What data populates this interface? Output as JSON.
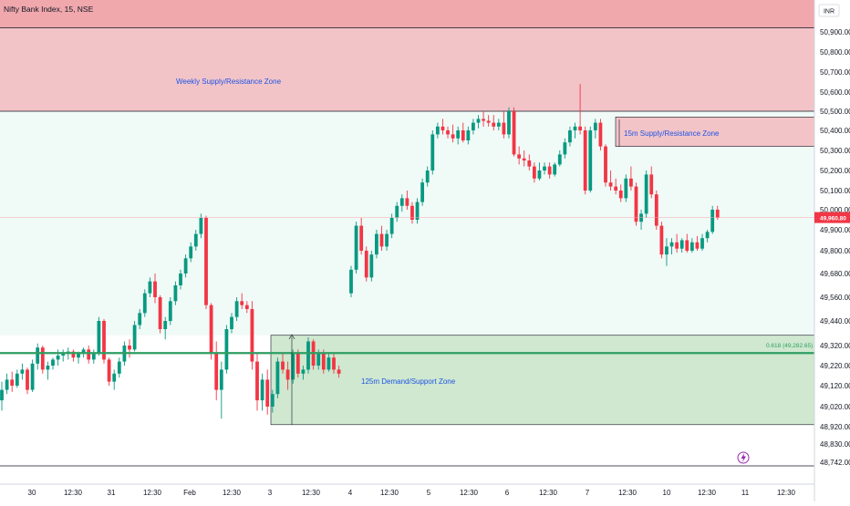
{
  "chart_data": {
    "type": "candlestick",
    "title": "Nifty Bank Index, 15, NSE",
    "currency": "INR",
    "y_axis": {
      "ticks": [
        "50,900.00",
        "50,800.00",
        "50,700.00",
        "50,600.00",
        "50,500.00",
        "50,400.00",
        "50,300.00",
        "50,200.00",
        "50,100.00",
        "50,000.00",
        "49,900.00",
        "49,800.00",
        "49,680.00",
        "49,560.00",
        "49,440.00",
        "49,320.00",
        "49,220.00",
        "49,120.00",
        "49,020.00",
        "48,920.00",
        "48,830.00",
        "48,742.00"
      ],
      "last_price": "49,960.80",
      "ylim": [
        48720,
        51000
      ]
    },
    "x_axis": {
      "labels": [
        "30",
        "12:30",
        "31",
        "12:30",
        "Feb",
        "12:30",
        "3",
        "12:30",
        "4",
        "12:30",
        "5",
        "12:30",
        "6",
        "12:30",
        "7",
        "12:30",
        "10",
        "12:30",
        "11",
        "12:30"
      ]
    },
    "zones": [
      {
        "name": "weekly-supply",
        "label": "Weekly Supply/Resistance Zone",
        "y_top": 51000,
        "y_bottom": 50500,
        "band_top": 50920,
        "color": "#f2c4c8",
        "dark_color": "#f0a8ad"
      },
      {
        "name": "15m-supply",
        "label": "15m Supply/Resistance Zone",
        "y_top": 50470,
        "y_bottom": 50320,
        "color": "#f2c4c8"
      },
      {
        "name": "125m-demand",
        "label": "125m Demand/Support Zone",
        "y_top": 49370,
        "y_bottom": 48930,
        "color": "#cfe8cf"
      }
    ],
    "fib_line": {
      "label": "0.618 (49,282.65)",
      "value": 49282.65,
      "color": "#2e9e62"
    },
    "colors": {
      "up": "#089981",
      "down": "#f23645",
      "demand_text": "#1e53e5",
      "supply_text": "#1e53e5"
    },
    "candles": [
      [
        49050,
        49140,
        49000,
        49100
      ],
      [
        49100,
        49180,
        49080,
        49150
      ],
      [
        49150,
        49190,
        49090,
        49120
      ],
      [
        49120,
        49200,
        49110,
        49180
      ],
      [
        49180,
        49230,
        49150,
        49200
      ],
      [
        49200,
        49210,
        49080,
        49100
      ],
      [
        49100,
        49250,
        49090,
        49230
      ],
      [
        49230,
        49330,
        49200,
        49310
      ],
      [
        49310,
        49320,
        49180,
        49200
      ],
      [
        49200,
        49240,
        49150,
        49220
      ],
      [
        49220,
        49260,
        49200,
        49250
      ],
      [
        49250,
        49300,
        49220,
        49270
      ],
      [
        49270,
        49300,
        49240,
        49280
      ],
      [
        49280,
        49310,
        49250,
        49290
      ],
      [
        49290,
        49300,
        49240,
        49260
      ],
      [
        49260,
        49290,
        49230,
        49280
      ],
      [
        49280,
        49310,
        49260,
        49300
      ],
      [
        49300,
        49320,
        49230,
        49250
      ],
      [
        49250,
        49300,
        49230,
        49280
      ],
      [
        49280,
        49460,
        49270,
        49440
      ],
      [
        49440,
        49450,
        49230,
        49250
      ],
      [
        49250,
        49260,
        49120,
        49140
      ],
      [
        49140,
        49200,
        49100,
        49180
      ],
      [
        49180,
        49260,
        49160,
        49240
      ],
      [
        49240,
        49340,
        49220,
        49320
      ],
      [
        49320,
        49350,
        49260,
        49300
      ],
      [
        49300,
        49440,
        49290,
        49420
      ],
      [
        49420,
        49500,
        49400,
        49480
      ],
      [
        49480,
        49600,
        49460,
        49580
      ],
      [
        49580,
        49660,
        49560,
        49640
      ],
      [
        49640,
        49680,
        49530,
        49560
      ],
      [
        49560,
        49570,
        49380,
        49400
      ],
      [
        49400,
        49460,
        49350,
        49440
      ],
      [
        49440,
        49560,
        49420,
        49540
      ],
      [
        49540,
        49640,
        49520,
        49620
      ],
      [
        49620,
        49700,
        49600,
        49680
      ],
      [
        49680,
        49780,
        49660,
        49760
      ],
      [
        49760,
        49840,
        49740,
        49820
      ],
      [
        49820,
        49900,
        49800,
        49880
      ],
      [
        49880,
        49980,
        49860,
        49960
      ],
      [
        49960,
        49970,
        49500,
        49520
      ],
      [
        49520,
        49530,
        49250,
        49280
      ],
      [
        49280,
        49340,
        49050,
        49100
      ],
      [
        49100,
        49240,
        48960,
        49200
      ],
      [
        49200,
        49420,
        49180,
        49400
      ],
      [
        49400,
        49480,
        49380,
        49460
      ],
      [
        49460,
        49560,
        49440,
        49540
      ],
      [
        49540,
        49580,
        49500,
        49520
      ],
      [
        49520,
        49540,
        49480,
        49500
      ],
      [
        49500,
        49540,
        49200,
        49240
      ],
      [
        49240,
        49280,
        49000,
        49050
      ],
      [
        49050,
        49180,
        49000,
        49150
      ],
      [
        49150,
        49200,
        48980,
        49020
      ],
      [
        49020,
        49100,
        48990,
        49080
      ],
      [
        49080,
        49260,
        49060,
        49240
      ],
      [
        49240,
        49280,
        49180,
        49200
      ],
      [
        49200,
        49240,
        49100,
        49150
      ],
      [
        49150,
        49300,
        49130,
        49280
      ],
      [
        49280,
        49300,
        49160,
        49180
      ],
      [
        49180,
        49220,
        49150,
        49200
      ],
      [
        49200,
        49360,
        49180,
        49340
      ],
      [
        49340,
        49350,
        49200,
        49220
      ],
      [
        49220,
        49300,
        49200,
        49280
      ],
      [
        49280,
        49300,
        49180,
        49200
      ],
      [
        49200,
        49280,
        49190,
        49260
      ],
      [
        49260,
        49280,
        49180,
        49200
      ],
      [
        49200,
        49220,
        49160,
        49180
      ],
      [
        49580,
        49720,
        49560,
        49700
      ],
      [
        49700,
        49940,
        49680,
        49920
      ],
      [
        49920,
        49960,
        49780,
        49800
      ],
      [
        49800,
        49820,
        49640,
        49660
      ],
      [
        49660,
        49800,
        49640,
        49780
      ],
      [
        49780,
        49900,
        49760,
        49880
      ],
      [
        49880,
        49920,
        49800,
        49820
      ],
      [
        49820,
        49900,
        49800,
        49880
      ],
      [
        49880,
        49980,
        49860,
        49960
      ],
      [
        49960,
        50040,
        49940,
        50020
      ],
      [
        50020,
        50080,
        49990,
        50060
      ],
      [
        50060,
        50100,
        50000,
        50020
      ],
      [
        50020,
        50040,
        49930,
        49950
      ],
      [
        49950,
        50060,
        49930,
        50040
      ],
      [
        50040,
        50160,
        50020,
        50140
      ],
      [
        50140,
        50220,
        50120,
        50200
      ],
      [
        50200,
        50400,
        50180,
        50380
      ],
      [
        50380,
        50440,
        50360,
        50420
      ],
      [
        50420,
        50460,
        50380,
        50400
      ],
      [
        50400,
        50420,
        50360,
        50380
      ],
      [
        50380,
        50430,
        50340,
        50360
      ],
      [
        50360,
        50420,
        50330,
        50400
      ],
      [
        50400,
        50440,
        50340,
        50350
      ],
      [
        50350,
        50420,
        50330,
        50400
      ],
      [
        50400,
        50460,
        50380,
        50440
      ],
      [
        50440,
        50480,
        50410,
        50460
      ],
      [
        50460,
        50500,
        50420,
        50450
      ],
      [
        50450,
        50480,
        50420,
        50440
      ],
      [
        50440,
        50480,
        50400,
        50420
      ],
      [
        50420,
        50460,
        50400,
        50440
      ],
      [
        50440,
        50500,
        50360,
        50380
      ],
      [
        50380,
        50520,
        50360,
        50500
      ],
      [
        50500,
        50520,
        50270,
        50280
      ],
      [
        50280,
        50320,
        50230,
        50260
      ],
      [
        50260,
        50300,
        50220,
        50250
      ],
      [
        50250,
        50280,
        50200,
        50220
      ],
      [
        50220,
        50240,
        50140,
        50160
      ],
      [
        50160,
        50240,
        50150,
        50200
      ],
      [
        50200,
        50240,
        50180,
        50220
      ],
      [
        50220,
        50240,
        50160,
        50180
      ],
      [
        50180,
        50240,
        50170,
        50230
      ],
      [
        50230,
        50300,
        50220,
        50280
      ],
      [
        50280,
        50360,
        50260,
        50340
      ],
      [
        50340,
        50420,
        50320,
        50400
      ],
      [
        50400,
        50440,
        50360,
        50420
      ],
      [
        50420,
        50640,
        50380,
        50400
      ],
      [
        50400,
        50420,
        50080,
        50100
      ],
      [
        50100,
        50420,
        50090,
        50400
      ],
      [
        50400,
        50460,
        50360,
        50440
      ],
      [
        50440,
        50460,
        50300,
        50320
      ],
      [
        50320,
        50330,
        50120,
        50140
      ],
      [
        50140,
        50200,
        50100,
        50120
      ],
      [
        50120,
        50160,
        50080,
        50100
      ],
      [
        50100,
        50130,
        50040,
        50060
      ],
      [
        50060,
        50180,
        50040,
        50160
      ],
      [
        50160,
        50220,
        50100,
        50120
      ],
      [
        50120,
        50140,
        49920,
        49940
      ],
      [
        49940,
        50000,
        49900,
        49980
      ],
      [
        49980,
        50200,
        49960,
        50180
      ],
      [
        50180,
        50220,
        50060,
        50080
      ],
      [
        50080,
        50100,
        49900,
        49920
      ],
      [
        49920,
        49940,
        49760,
        49780
      ],
      [
        49780,
        49860,
        49720,
        49820
      ],
      [
        49820,
        49860,
        49780,
        49840
      ],
      [
        49840,
        49880,
        49790,
        49810
      ],
      [
        49810,
        49860,
        49790,
        49850
      ],
      [
        49850,
        49880,
        49790,
        49800
      ],
      [
        49800,
        49860,
        49790,
        49840
      ],
      [
        49840,
        49870,
        49800,
        49810
      ],
      [
        49810,
        49880,
        49800,
        49860
      ],
      [
        49860,
        49900,
        49840,
        49890
      ],
      [
        49890,
        50020,
        49880,
        50000
      ],
      [
        50000,
        50020,
        49950,
        49960
      ]
    ]
  }
}
